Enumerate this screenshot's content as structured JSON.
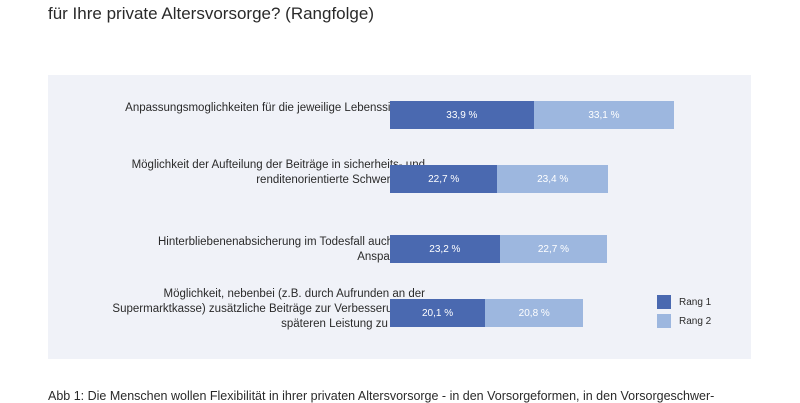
{
  "title": "für Ihre private Altersvorsorge? (Rangfolge)",
  "caption": "Abb 1: Die Menschen wollen Flexibilität in ihrer privaten Altersvorsorge - in den Vorsorgeformen, in den Vorsorgeschwer-",
  "chart_data": {
    "type": "bar",
    "stacked": true,
    "orientation": "horizontal",
    "categories": [
      "Anpassungsmoglichkeiten für die jeweilige Lebenssituation",
      "Möglichkeit der Aufteilung der Beiträge in sicherheits- und renditenorientierte Schwerpunkte",
      "Hinterbliebenenabsicherung im Todesfall auch in der Ansparphase",
      "Möglichkeit, nebenbei (z.B. durch Aufrunden an der Supermarktkasse) zusätzliche Beiträge zur Verbesserung der späteren Leistung zu zahlen"
    ],
    "series": [
      {
        "name": "Rang 1",
        "values": [
          33.9,
          22.7,
          23.2,
          20.1
        ],
        "labels": [
          "33,9 %",
          "22,7 %",
          "23,2 %",
          "20,1 %"
        ],
        "color": "#4a69b0"
      },
      {
        "name": "Rang 2",
        "values": [
          33.1,
          23.4,
          22.7,
          20.8
        ],
        "labels": [
          "33,1 %",
          "23,4 %",
          "22,7 %",
          "20,8 %"
        ],
        "color": "#9db7df"
      }
    ],
    "legend": "bottom-right"
  }
}
